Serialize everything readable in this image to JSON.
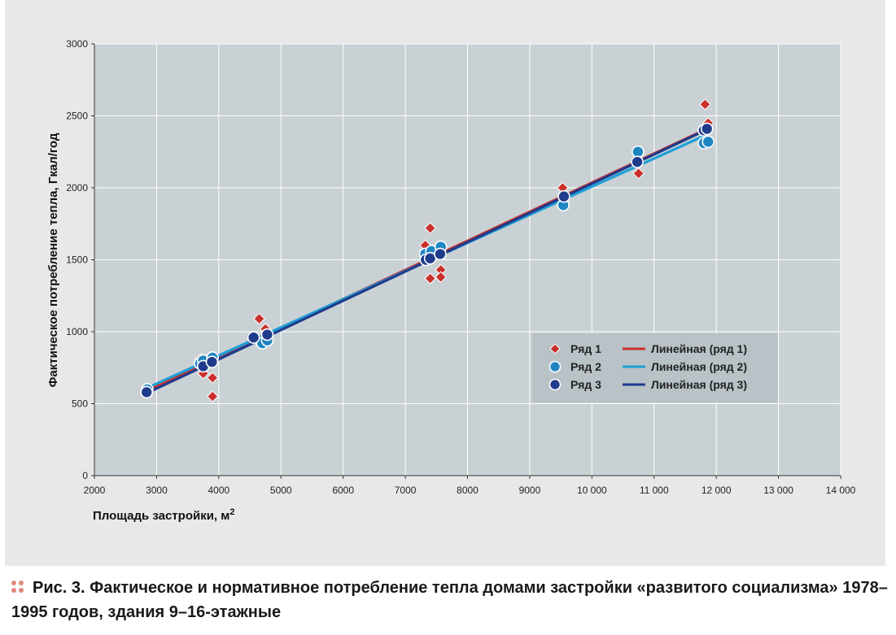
{
  "chart_data": {
    "type": "scatter",
    "xlabel": "Площадь застройки, м",
    "xlabel_sup": "2",
    "ylabel": "Фактическое потребление тепла, Гкал/год",
    "xlim": [
      2000,
      14000
    ],
    "ylim": [
      0,
      3000
    ],
    "x_ticks": [
      2000,
      3000,
      4000,
      5000,
      6000,
      7000,
      8000,
      9000,
      10000,
      11000,
      12000,
      13000,
      14000
    ],
    "x_tick_labels": [
      "2000",
      "3000",
      "4000",
      "5000",
      "6000",
      "7000",
      "8000",
      "9000",
      "10 000",
      "11 000",
      "12 000",
      "13 000",
      "14 000"
    ],
    "y_ticks": [
      0,
      500,
      1000,
      1500,
      2000,
      2500,
      3000
    ],
    "y_tick_labels": [
      "0",
      "500",
      "1000",
      "1500",
      "2000",
      "2500",
      "3000"
    ],
    "grid": true,
    "legend_position": "lower-right",
    "series": [
      {
        "name": "Ряд 1",
        "marker": "diamond",
        "color": "#c9302c",
        "points": [
          [
            3700,
            810
          ],
          [
            3750,
            760
          ],
          [
            3750,
            710
          ],
          [
            3900,
            680
          ],
          [
            3900,
            550
          ],
          [
            4650,
            1090
          ],
          [
            4750,
            1020
          ],
          [
            7320,
            1600
          ],
          [
            7400,
            1720
          ],
          [
            7400,
            1370
          ],
          [
            7570,
            1430
          ],
          [
            7570,
            1380
          ],
          [
            9530,
            2000
          ],
          [
            10750,
            2100
          ],
          [
            11820,
            2580
          ],
          [
            11870,
            2450
          ]
        ]
      },
      {
        "name": "Ряд 2",
        "marker": "circle",
        "color": "#1f86c1",
        "points": [
          [
            2850,
            600
          ],
          [
            3700,
            780
          ],
          [
            3750,
            800
          ],
          [
            3900,
            820
          ],
          [
            4700,
            920
          ],
          [
            4780,
            940
          ],
          [
            7320,
            1540
          ],
          [
            7420,
            1560
          ],
          [
            7570,
            1590
          ],
          [
            9540,
            1880
          ],
          [
            10740,
            2250
          ],
          [
            11800,
            2310
          ],
          [
            11870,
            2320
          ]
        ]
      },
      {
        "name": "Ряд 3",
        "marker": "circle",
        "color": "#1f3c8c",
        "points": [
          [
            2840,
            580
          ],
          [
            3750,
            760
          ],
          [
            3890,
            790
          ],
          [
            4560,
            960
          ],
          [
            4780,
            980
          ],
          [
            7330,
            1500
          ],
          [
            7400,
            1510
          ],
          [
            7560,
            1540
          ],
          [
            9550,
            1940
          ],
          [
            10730,
            2180
          ],
          [
            11800,
            2400
          ],
          [
            11850,
            2410
          ]
        ]
      }
    ],
    "trendlines": [
      {
        "name": "Линейная (ряд 1)",
        "color": "#c9302c",
        "x": [
          2850,
          11850
        ],
        "y": [
          590,
          2410
        ]
      },
      {
        "name": "Линейная (ряд 2)",
        "color": "#1f9fd6",
        "x": [
          2850,
          11850
        ],
        "y": [
          610,
          2370
        ]
      },
      {
        "name": "Линейная (ряд 3)",
        "color": "#1f3c8c",
        "x": [
          2850,
          11850
        ],
        "y": [
          575,
          2405
        ]
      }
    ]
  },
  "caption": {
    "label": "Рис. 3.",
    "text": "Фактическое и нормативное потребление тепла домами застройки «развитого социализма» 1978–1995 годов, здания 9–16-этажные"
  },
  "colors": {
    "plot_background": "#c9d1d5",
    "panel_background": "#e8e8e8",
    "legend_background": "#b8c2c7",
    "caption_dots": "#e08a7a"
  }
}
